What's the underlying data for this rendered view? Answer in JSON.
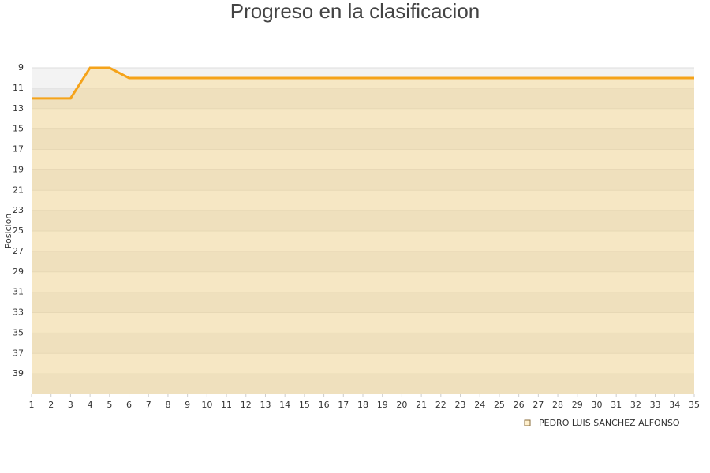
{
  "chart_data": {
    "type": "line",
    "title": "Progreso en la clasificacion",
    "y_label": "Posicion",
    "x": [
      1,
      2,
      3,
      4,
      5,
      6,
      7,
      8,
      9,
      10,
      11,
      12,
      13,
      14,
      15,
      16,
      17,
      18,
      19,
      20,
      21,
      22,
      23,
      24,
      25,
      26,
      27,
      28,
      29,
      30,
      31,
      32,
      33,
      34,
      35
    ],
    "series": [
      {
        "name": "PEDRO LUIS SANCHEZ ALFONSO",
        "color": "#f5a31a",
        "values": [
          12,
          12,
          12,
          9,
          9,
          10,
          10,
          10,
          10,
          10,
          10,
          10,
          10,
          10,
          10,
          10,
          10,
          10,
          10,
          10,
          10,
          10,
          10,
          10,
          10,
          10,
          10,
          10,
          10,
          10,
          10,
          10,
          10,
          10,
          10
        ]
      }
    ],
    "xlim": [
      1,
      35
    ],
    "xticks": [
      1,
      2,
      3,
      4,
      5,
      6,
      7,
      8,
      9,
      10,
      11,
      12,
      13,
      14,
      15,
      16,
      17,
      18,
      19,
      20,
      21,
      22,
      23,
      24,
      25,
      26,
      27,
      28,
      29,
      30,
      31,
      32,
      33,
      34,
      35
    ],
    "ylim": [
      9,
      41
    ],
    "yticks": [
      9,
      11,
      13,
      15,
      17,
      19,
      21,
      23,
      25,
      27,
      29,
      31,
      33,
      35,
      37,
      39
    ],
    "y_inverted": true,
    "grid": true
  }
}
